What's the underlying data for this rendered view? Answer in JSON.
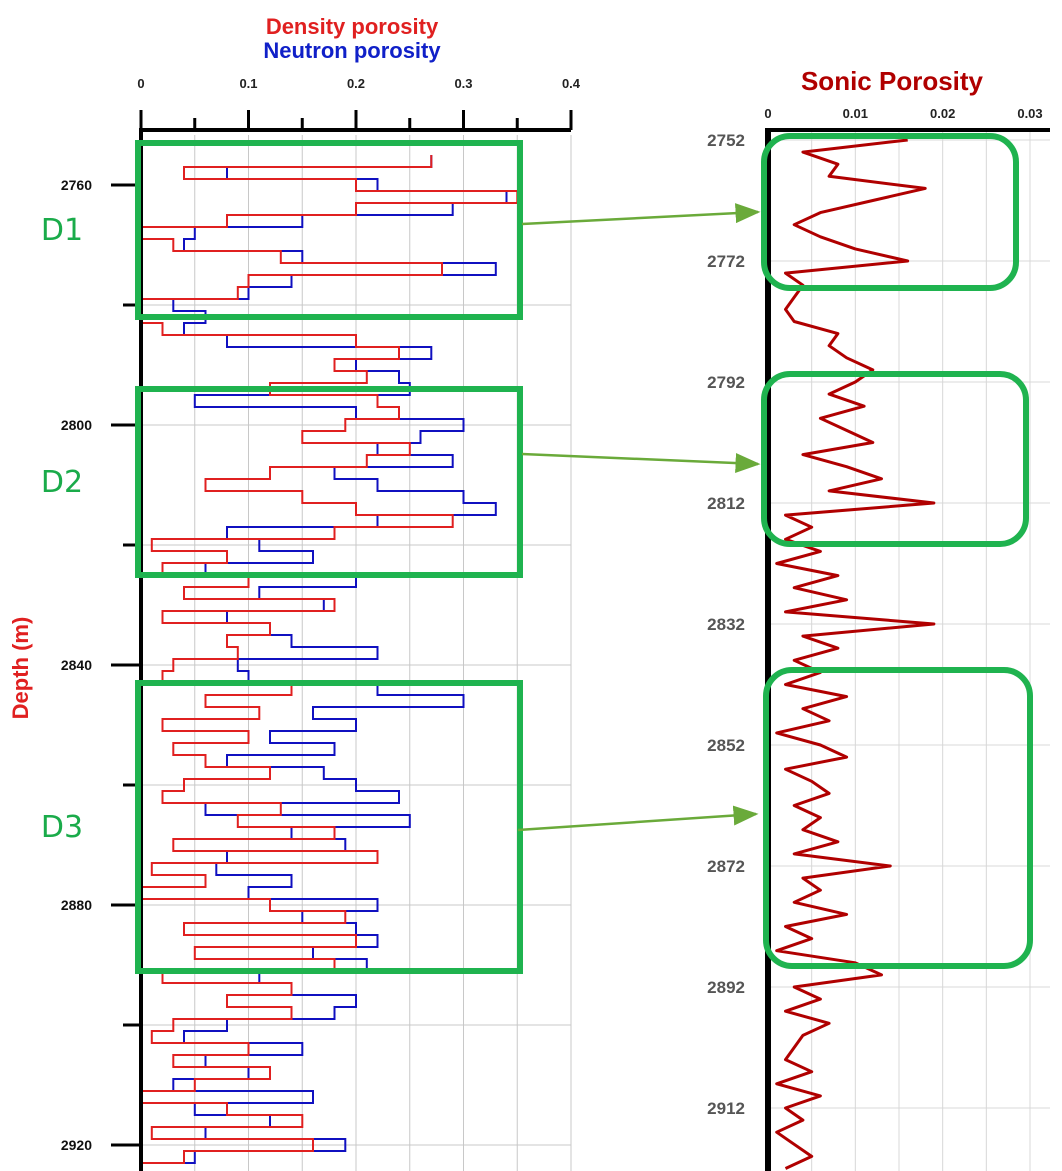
{
  "chart_data": [
    {
      "type": "line",
      "title": [
        "Density porosity",
        "Neutron porosity"
      ],
      "xlabel": "",
      "ylabel": "Depth (m)",
      "xticks": [
        "0",
        "0.1",
        "0.2",
        "0.3",
        "0.4"
      ],
      "xlim": [
        0,
        0.4
      ],
      "yticks": [
        "2760",
        "2800",
        "2840",
        "2880",
        "2920"
      ],
      "ylim": [
        2755,
        2923
      ],
      "grid": true,
      "series": [
        {
          "name": "Density porosity",
          "color": "#e02020",
          "depth": [
            2755,
            2757,
            2759,
            2761,
            2763,
            2765,
            2767,
            2769,
            2771,
            2773,
            2775,
            2777,
            2779,
            2781,
            2783,
            2785,
            2787,
            2789,
            2791,
            2793,
            2795,
            2797,
            2799,
            2801,
            2803,
            2805,
            2807,
            2809,
            2811,
            2813,
            2815,
            2817,
            2819,
            2821,
            2823,
            2825,
            2827,
            2829,
            2831,
            2833,
            2835,
            2837,
            2839,
            2841,
            2843,
            2845,
            2847,
            2849,
            2851,
            2853,
            2855,
            2857,
            2859,
            2861,
            2863,
            2865,
            2867,
            2869,
            2871,
            2873,
            2875,
            2877,
            2879,
            2881,
            2883,
            2885,
            2887,
            2889,
            2891,
            2893,
            2895,
            2897,
            2899,
            2901,
            2903,
            2905,
            2907,
            2909,
            2911,
            2913,
            2915,
            2917,
            2919,
            2921,
            2923
          ],
          "values": [
            0.27,
            0.04,
            0.2,
            0.35,
            0.2,
            0.08,
            0.0,
            0.03,
            0.13,
            0.28,
            0.1,
            0.09,
            0.0,
            0.0,
            0.02,
            0.2,
            0.24,
            0.18,
            0.21,
            0.12,
            0.22,
            0.24,
            0.19,
            0.15,
            0.25,
            0.21,
            0.12,
            0.06,
            0.15,
            0.2,
            0.29,
            0.18,
            0.01,
            0.08,
            0.02,
            0.1,
            0.04,
            0.18,
            0.02,
            0.12,
            0.08,
            0.09,
            0.03,
            0.02,
            0.14,
            0.06,
            0.11,
            0.02,
            0.1,
            0.03,
            0.06,
            0.12,
            0.04,
            0.02,
            0.13,
            0.09,
            0.18,
            0.03,
            0.22,
            0.01,
            0.06,
            0.0,
            0.12,
            0.19,
            0.04,
            0.2,
            0.05,
            0.18,
            0.02,
            0.14,
            0.08,
            0.14,
            0.03,
            0.01,
            0.1,
            0.03,
            0.12,
            0.05,
            0.0,
            0.08,
            0.15,
            0.01,
            0.16,
            0.04,
            0.0
          ]
        },
        {
          "name": "Neutron porosity",
          "color": "#1010c0",
          "depth": [
            2755,
            2757,
            2759,
            2761,
            2763,
            2765,
            2767,
            2769,
            2771,
            2773,
            2775,
            2777,
            2779,
            2781,
            2783,
            2785,
            2787,
            2789,
            2791,
            2793,
            2795,
            2797,
            2799,
            2801,
            2803,
            2805,
            2807,
            2809,
            2811,
            2813,
            2815,
            2817,
            2819,
            2821,
            2823,
            2825,
            2827,
            2829,
            2831,
            2833,
            2835,
            2837,
            2839,
            2841,
            2843,
            2845,
            2847,
            2849,
            2851,
            2853,
            2855,
            2857,
            2859,
            2861,
            2863,
            2865,
            2867,
            2869,
            2871,
            2873,
            2875,
            2877,
            2879,
            2881,
            2883,
            2885,
            2887,
            2889,
            2891,
            2893,
            2895,
            2897,
            2899,
            2901,
            2903,
            2905,
            2907,
            2909,
            2911,
            2913,
            2915,
            2917,
            2919,
            2921,
            2923
          ],
          "values": [
            0.27,
            0.08,
            0.22,
            0.34,
            0.29,
            0.15,
            0.05,
            0.04,
            0.15,
            0.33,
            0.14,
            0.1,
            0.03,
            0.06,
            0.04,
            0.08,
            0.27,
            0.2,
            0.24,
            0.25,
            0.05,
            0.2,
            0.3,
            0.26,
            0.22,
            0.29,
            0.18,
            0.22,
            0.3,
            0.33,
            0.22,
            0.08,
            0.11,
            0.16,
            0.06,
            0.2,
            0.11,
            0.17,
            0.08,
            0.12,
            0.14,
            0.22,
            0.09,
            0.1,
            0.22,
            0.3,
            0.16,
            0.2,
            0.12,
            0.18,
            0.08,
            0.17,
            0.2,
            0.24,
            0.06,
            0.25,
            0.14,
            0.19,
            0.08,
            0.07,
            0.14,
            0.1,
            0.22,
            0.15,
            0.2,
            0.22,
            0.16,
            0.21,
            0.11,
            0.14,
            0.2,
            0.18,
            0.08,
            0.04,
            0.15,
            0.06,
            0.1,
            0.03,
            0.16,
            0.05,
            0.12,
            0.06,
            0.19,
            0.05,
            0.02
          ]
        }
      ],
      "annotations": [
        "D1",
        "D2",
        "D3"
      ],
      "zones_depth": [
        [
          2753,
          2782
        ],
        [
          2794,
          2825
        ],
        [
          2843,
          2891
        ]
      ]
    },
    {
      "type": "line",
      "title": "Sonic Porosity",
      "xlabel": "",
      "ylabel": "",
      "xticks": [
        "0",
        "0.01",
        "0.02",
        "0.03"
      ],
      "xlim": [
        0,
        0.03
      ],
      "yticks": [
        "2752",
        "2772",
        "2792",
        "2812",
        "2832",
        "2852",
        "2872",
        "2892",
        "2912"
      ],
      "ylim": [
        2752,
        2922
      ],
      "grid": true,
      "series": [
        {
          "name": "Sonic Porosity",
          "color": "#b00000",
          "depth": [
            2752,
            2754,
            2756,
            2758,
            2760,
            2762,
            2764,
            2766,
            2768,
            2770,
            2772,
            2774,
            2776,
            2778,
            2780,
            2782,
            2784,
            2786,
            2788,
            2790,
            2792,
            2794,
            2796,
            2798,
            2800,
            2802,
            2804,
            2806,
            2808,
            2810,
            2812,
            2814,
            2816,
            2818,
            2820,
            2822,
            2824,
            2826,
            2828,
            2830,
            2832,
            2834,
            2836,
            2838,
            2840,
            2842,
            2844,
            2846,
            2848,
            2850,
            2852,
            2854,
            2856,
            2858,
            2860,
            2862,
            2864,
            2866,
            2868,
            2870,
            2872,
            2874,
            2876,
            2878,
            2880,
            2882,
            2884,
            2886,
            2888,
            2890,
            2892,
            2894,
            2896,
            2898,
            2900,
            2902,
            2904,
            2906,
            2908,
            2910,
            2912,
            2914,
            2916,
            2918,
            2920,
            2922
          ],
          "values": [
            0.016,
            0.004,
            0.008,
            0.007,
            0.018,
            0.012,
            0.006,
            0.003,
            0.006,
            0.01,
            0.016,
            0.002,
            0.004,
            0.003,
            0.002,
            0.003,
            0.008,
            0.007,
            0.009,
            0.012,
            0.01,
            0.007,
            0.011,
            0.006,
            0.009,
            0.012,
            0.004,
            0.009,
            0.013,
            0.007,
            0.019,
            0.002,
            0.005,
            0.002,
            0.006,
            0.001,
            0.008,
            0.003,
            0.009,
            0.002,
            0.019,
            0.004,
            0.008,
            0.003,
            0.006,
            0.002,
            0.009,
            0.004,
            0.007,
            0.001,
            0.006,
            0.009,
            0.002,
            0.005,
            0.007,
            0.003,
            0.006,
            0.004,
            0.008,
            0.003,
            0.014,
            0.004,
            0.006,
            0.003,
            0.009,
            0.002,
            0.005,
            0.001,
            0.01,
            0.013,
            0.003,
            0.006,
            0.002,
            0.007,
            0.004,
            0.003,
            0.002,
            0.005,
            0.001,
            0.006,
            0.002,
            0.004,
            0.001,
            0.003,
            0.005,
            0.002
          ]
        }
      ],
      "zones_depth": [
        [
          2752,
          2773
        ],
        [
          2793,
          2814
        ],
        [
          2842,
          2879
        ]
      ]
    }
  ],
  "colors": {
    "zone_box": "#1fb34f",
    "arrow": "#6aaa3a",
    "grid": "#c8c8c8",
    "axis": "#000000"
  }
}
